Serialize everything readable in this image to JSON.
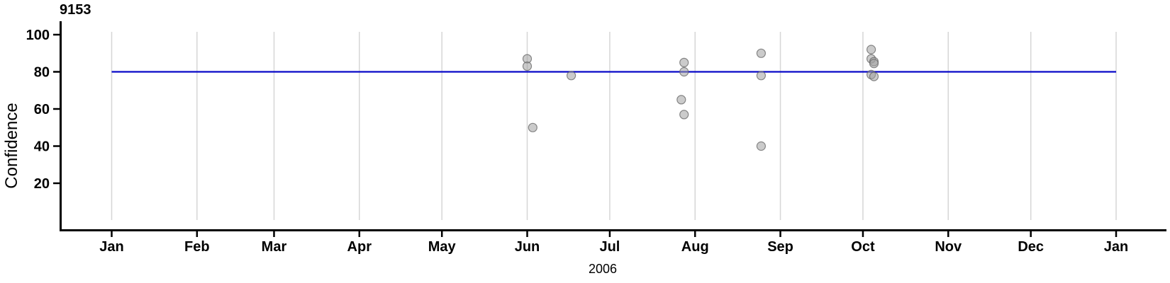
{
  "figure": {
    "id_label": "9153",
    "y_axis": {
      "label": "Confidence"
    },
    "x_axis": {
      "year_label": "2006"
    },
    "colors": {
      "axis": "#000000",
      "grid": "#d6d6d6",
      "reference_line": "#0808c8",
      "point_fill": "#a0a0a0",
      "point_stroke": "#646464"
    }
  },
  "chart_data": {
    "type": "scatter",
    "title": "9153",
    "xlabel": "2006",
    "ylabel": "Confidence",
    "x_range_dates": [
      "2006-01-01",
      "2007-01-01"
    ],
    "x_tick_labels": [
      "Jan",
      "Feb",
      "Mar",
      "Apr",
      "May",
      "Jun",
      "Jul",
      "Aug",
      "Sep",
      "Oct",
      "Nov",
      "Dec",
      "Jan"
    ],
    "y_ticks": [
      20,
      40,
      60,
      80,
      100
    ],
    "ylim": [
      0,
      102
    ],
    "grid": "vertical-monthly-gridlines",
    "legend": "none",
    "reference_line": {
      "value": 80
    },
    "points": [
      {
        "date": "2006-06-01",
        "confidence": 87
      },
      {
        "date": "2006-06-01",
        "confidence": 83
      },
      {
        "date": "2006-06-03",
        "confidence": 50
      },
      {
        "date": "2006-06-17",
        "confidence": 78
      },
      {
        "date": "2006-07-28",
        "confidence": 85
      },
      {
        "date": "2006-07-28",
        "confidence": 80
      },
      {
        "date": "2006-07-27",
        "confidence": 65
      },
      {
        "date": "2006-07-28",
        "confidence": 57
      },
      {
        "date": "2006-08-25",
        "confidence": 90
      },
      {
        "date": "2006-08-25",
        "confidence": 78
      },
      {
        "date": "2006-08-25",
        "confidence": 40
      },
      {
        "date": "2006-10-04",
        "confidence": 92
      },
      {
        "date": "2006-10-04",
        "confidence": 87
      },
      {
        "date": "2006-10-05",
        "confidence": 85.5
      },
      {
        "date": "2006-10-05",
        "confidence": 84.5
      },
      {
        "date": "2006-10-04",
        "confidence": 78.5
      },
      {
        "date": "2006-10-05",
        "confidence": 77.5
      }
    ]
  }
}
